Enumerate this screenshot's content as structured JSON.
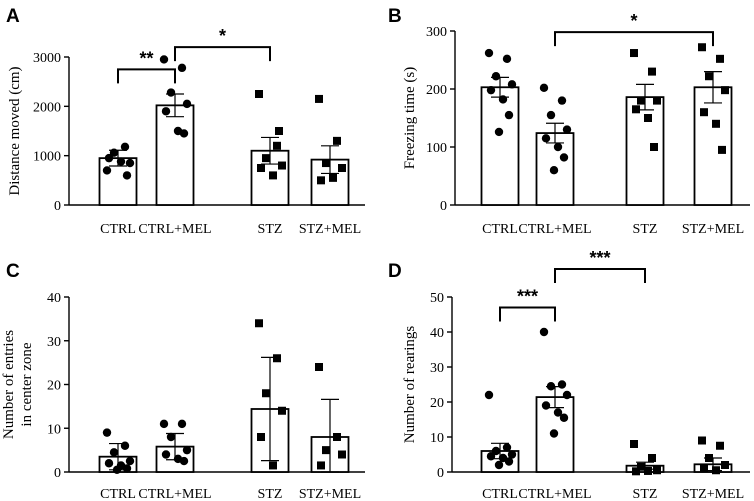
{
  "chart_data": [
    {
      "panel": "A",
      "type": "bar",
      "ylabel": "Distance moved (cm)",
      "ylim": [
        0,
        3000
      ],
      "yticks": [
        0,
        1000,
        2000,
        3000
      ],
      "categories": [
        "CTRL",
        "CTRL+MEL",
        "STZ",
        "STZ+MEL"
      ],
      "values": [
        950,
        2020,
        1100,
        920
      ],
      "errors": [
        160,
        230,
        270,
        280
      ],
      "marker": [
        "circle",
        "circle",
        "square",
        "square"
      ],
      "points": [
        [
          700,
          1180,
          1060,
          850,
          950,
          880,
          600
        ],
        [
          2950,
          2780,
          2280,
          2050,
          1900,
          1500,
          1450
        ],
        [
          2250,
          1200,
          950,
          800,
          750,
          600,
          1500
        ],
        [
          2150,
          1300,
          850,
          750,
          500,
          550
        ]
      ],
      "significance": [
        {
          "from": 0,
          "to": 1,
          "label": "**",
          "level": 2750
        },
        {
          "from": 1,
          "to": 2,
          "label": "*",
          "level": 3200
        }
      ]
    },
    {
      "panel": "B",
      "type": "bar",
      "ylabel": "Freezing time (s)",
      "ylim": [
        0,
        300
      ],
      "yticks": [
        0,
        100,
        200,
        300
      ],
      "categories": [
        "CTRL",
        "CTRL+MEL",
        "STZ",
        "STZ+MEL"
      ],
      "values": [
        203,
        124,
        186,
        203
      ],
      "errors": [
        17,
        17,
        22,
        27
      ],
      "marker": [
        "circle",
        "circle",
        "square",
        "square"
      ],
      "points": [
        [
          262,
          252,
          222,
          208,
          198,
          182,
          155,
          126
        ],
        [
          202,
          180,
          155,
          130,
          115,
          100,
          82,
          60
        ],
        [
          262,
          230,
          180,
          180,
          165,
          150,
          100
        ],
        [
          272,
          252,
          222,
          198,
          160,
          140,
          95
        ]
      ],
      "significance": [
        {
          "from": 1,
          "to": 3,
          "label": "*",
          "level": 298
        }
      ]
    },
    {
      "panel": "C",
      "type": "bar",
      "ylabel": "Number of entries in center zone",
      "ylabel_lines": [
        "Number of entries",
        "in center zone"
      ],
      "ylim": [
        0,
        40
      ],
      "yticks": [
        0,
        10,
        20,
        30,
        40
      ],
      "categories": [
        "CTRL",
        "CTRL+MEL",
        "STZ",
        "STZ+MEL"
      ],
      "values": [
        3.5,
        5.8,
        14.4,
        8.0
      ],
      "errors": [
        3.0,
        3.0,
        11.8,
        8.6
      ],
      "marker": [
        "circle",
        "circle",
        "square",
        "square"
      ],
      "points": [
        [
          9,
          6,
          4.5,
          2.5,
          2,
          1.5,
          0.8,
          0.5
        ],
        [
          11,
          11,
          8,
          5,
          4,
          3,
          2.5
        ],
        [
          34,
          26,
          18,
          14,
          8,
          1.5
        ],
        [
          24,
          8,
          5,
          4,
          1.5
        ]
      ],
      "significance": []
    },
    {
      "panel": "D",
      "type": "bar",
      "ylabel": "Number of rearings",
      "ylim": [
        0,
        50
      ],
      "yticks": [
        0,
        10,
        20,
        30,
        40,
        50
      ],
      "categories": [
        "CTRL",
        "CTRL+MEL",
        "STZ",
        "STZ+MEL"
      ],
      "values": [
        6,
        21.4,
        1.8,
        2.2
      ],
      "errors": [
        2.2,
        3.0,
        1.0,
        1.8
      ],
      "marker": [
        "circle",
        "circle",
        "square",
        "square"
      ],
      "points": [
        [
          22,
          7,
          6,
          5,
          4.5,
          4,
          3,
          2
        ],
        [
          40,
          25,
          24.5,
          22,
          19,
          17,
          15.5,
          11
        ],
        [
          8,
          4,
          1.5,
          0.5,
          0.2,
          0.3
        ],
        [
          9,
          7.5,
          4,
          2,
          1,
          0.5
        ]
      ],
      "significance": [
        {
          "from": 0,
          "to": 1,
          "label": "***",
          "level": 47
        },
        {
          "from": 1,
          "to": 2,
          "label": "***",
          "level": 58
        }
      ]
    }
  ]
}
